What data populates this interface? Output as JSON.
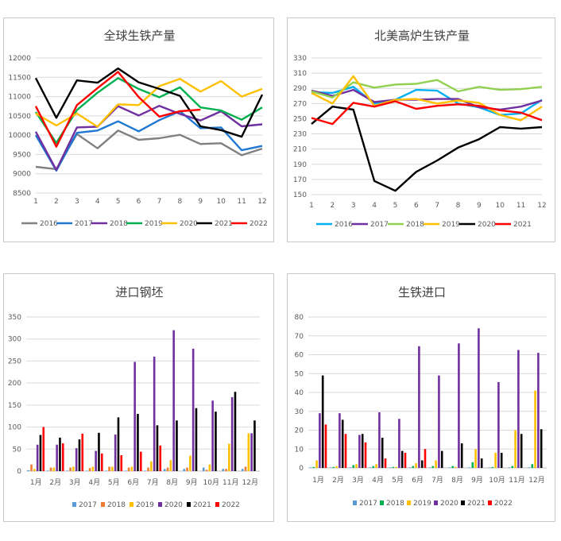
{
  "colors": {
    "grid": "#d9d9d9",
    "axis": "#bfbfbf"
  },
  "chart_data": [
    {
      "type": "line",
      "title": "全球生铁产量",
      "categories": [
        "1",
        "2",
        "3",
        "4",
        "5",
        "6",
        "7",
        "8",
        "9",
        "10",
        "11",
        "12"
      ],
      "ylim": [
        8500,
        12000
      ],
      "yticks": [
        "8500",
        "9000",
        "9500",
        "10000",
        "10500",
        "11000",
        "11500",
        "12000"
      ],
      "grid": true,
      "legend_position": "bottom",
      "series": [
        {
          "name": "2016",
          "color": "#808080",
          "values": [
            9180,
            9120,
            10030,
            9660,
            10120,
            9880,
            9920,
            10010,
            9770,
            9790,
            9480,
            9650
          ]
        },
        {
          "name": "2017",
          "color": "#1f78d2",
          "values": [
            10000,
            9080,
            10060,
            10120,
            10360,
            10100,
            10390,
            10620,
            10180,
            10200,
            9610,
            9720
          ]
        },
        {
          "name": "2018",
          "color": "#7030a0",
          "values": [
            10090,
            9100,
            10200,
            10220,
            10750,
            10510,
            10760,
            10550,
            10380,
            10620,
            10230,
            10280
          ]
        },
        {
          "name": "2019",
          "color": "#00b050",
          "values": [
            10600,
            9800,
            10650,
            11100,
            11480,
            11200,
            10980,
            11240,
            10720,
            10640,
            10400,
            10720
          ]
        },
        {
          "name": "2020",
          "color": "#ffc000",
          "values": [
            10560,
            10250,
            10560,
            10220,
            10800,
            10780,
            11270,
            11460,
            11130,
            11400,
            11000,
            11200
          ]
        },
        {
          "name": "2021",
          "color": "#000000",
          "values": [
            11480,
            10450,
            11420,
            11360,
            11730,
            11370,
            11200,
            11020,
            10230,
            10130,
            9960,
            11050
          ]
        },
        {
          "name": "2022",
          "color": "#ff0000",
          "values": [
            10750,
            9700,
            10780,
            11220,
            11640,
            10990,
            10480,
            10620,
            10660,
            null,
            null,
            null
          ]
        }
      ]
    },
    {
      "type": "line",
      "title": "北美高炉生铁产量",
      "categories": [
        "1",
        "2",
        "3",
        "4",
        "5",
        "6",
        "7",
        "8",
        "9",
        "10",
        "11",
        "12"
      ],
      "ylim": [
        150,
        330
      ],
      "yticks": [
        "150",
        "170",
        "190",
        "210",
        "230",
        "250",
        "270",
        "290",
        "310",
        "330"
      ],
      "grid": true,
      "legend_position": "bottom",
      "series": [
        {
          "name": "2016",
          "color": "#00b0f0",
          "values": [
            285,
            284,
            292,
            270,
            275,
            288,
            287,
            270,
            265,
            255,
            257,
            275
          ]
        },
        {
          "name": "2017",
          "color": "#7030a0",
          "values": [
            287,
            280,
            288,
            272,
            275,
            275,
            276,
            276,
            265,
            262,
            266,
            274
          ]
        },
        {
          "name": "2018",
          "color": "#92d050",
          "values": [
            286,
            278,
            298,
            291,
            295,
            296,
            301,
            286,
            292,
            288,
            289,
            292
          ]
        },
        {
          "name": "2019",
          "color": "#ffc000",
          "values": [
            284,
            270,
            306,
            267,
            275,
            276,
            270,
            274,
            271,
            255,
            248,
            266
          ]
        },
        {
          "name": "2020",
          "color": "#000000",
          "values": [
            243,
            266,
            262,
            168,
            155,
            180,
            195,
            212,
            223,
            239,
            237,
            239
          ]
        },
        {
          "name": "2021",
          "color": "#ff0000",
          "values": [
            251,
            243,
            271,
            266,
            273,
            263,
            267,
            269,
            267,
            261,
            258,
            248
          ]
        }
      ]
    },
    {
      "type": "bar",
      "title": "进口钢坯",
      "categories": [
        "1月",
        "2月",
        "3月",
        "4月",
        "5月",
        "6月",
        "7月",
        "8月",
        "9月",
        "10月",
        "11月",
        "12月"
      ],
      "ylim": [
        0,
        350
      ],
      "yticks": [
        "0",
        "50",
        "100",
        "150",
        "200",
        "250",
        "300",
        "350"
      ],
      "grid": true,
      "legend_position": "bottom",
      "series": [
        {
          "name": "2017",
          "color": "#5b9bd5",
          "values": [
            2,
            1,
            1,
            1,
            1,
            1,
            1,
            5,
            5,
            8,
            5,
            5
          ]
        },
        {
          "name": "2018",
          "color": "#ed7d31",
          "values": [
            15,
            8,
            8,
            7,
            10,
            8,
            8,
            8,
            8,
            3,
            5,
            10
          ]
        },
        {
          "name": "2019",
          "color": "#ffc000",
          "values": [
            5,
            8,
            10,
            10,
            10,
            10,
            22,
            25,
            35,
            15,
            62,
            86
          ]
        },
        {
          "name": "2020",
          "color": "#7030a0",
          "values": [
            60,
            60,
            52,
            46,
            83,
            248,
            260,
            320,
            278,
            160,
            168,
            86
          ]
        },
        {
          "name": "2021",
          "color": "#000000",
          "values": [
            82,
            76,
            72,
            87,
            122,
            130,
            104,
            115,
            143,
            135,
            180,
            115
          ]
        },
        {
          "name": "2022",
          "color": "#ff0000",
          "values": [
            100,
            63,
            85,
            40,
            36,
            44,
            58,
            null,
            null,
            null,
            null,
            null
          ]
        }
      ]
    },
    {
      "type": "bar",
      "title": "生铁进口",
      "categories": [
        "1月",
        "2月",
        "3月",
        "4月",
        "5月",
        "6月",
        "7月",
        "8月",
        "9月",
        "10月",
        "11月",
        "12月"
      ],
      "ylim": [
        0,
        80
      ],
      "yticks": [
        "0",
        "10",
        "20",
        "30",
        "40",
        "50",
        "60",
        "70",
        "80"
      ],
      "grid": true,
      "legend_position": "bottom",
      "series": [
        {
          "name": "2017",
          "color": "#5b9bd5",
          "values": [
            0.3,
            0.3,
            0.3,
            0.3,
            0.3,
            0.3,
            0.3,
            0.3,
            0.3,
            0.3,
            0.3,
            0.3
          ]
        },
        {
          "name": "2018",
          "color": "#00b050",
          "values": [
            0.5,
            0.5,
            1.5,
            1,
            0.5,
            1,
            1,
            1,
            3,
            0.5,
            1,
            2
          ]
        },
        {
          "name": "2019",
          "color": "#ffc000",
          "values": [
            4,
            1,
            2,
            2,
            0.5,
            2.5,
            4,
            0.5,
            10,
            8,
            20,
            41
          ]
        },
        {
          "name": "2020",
          "color": "#7030a0",
          "values": [
            29,
            29,
            17.5,
            29.5,
            26,
            64.5,
            49,
            66,
            74,
            45.5,
            62.5,
            61
          ]
        },
        {
          "name": "2021",
          "color": "#000000",
          "values": [
            49,
            25.5,
            18,
            16,
            9,
            4,
            9,
            13,
            5,
            8,
            18,
            20.5
          ]
        },
        {
          "name": "2022",
          "color": "#ff0000",
          "values": [
            23,
            18,
            13.5,
            5,
            8,
            10,
            null,
            null,
            null,
            null,
            null,
            null
          ]
        }
      ]
    }
  ]
}
